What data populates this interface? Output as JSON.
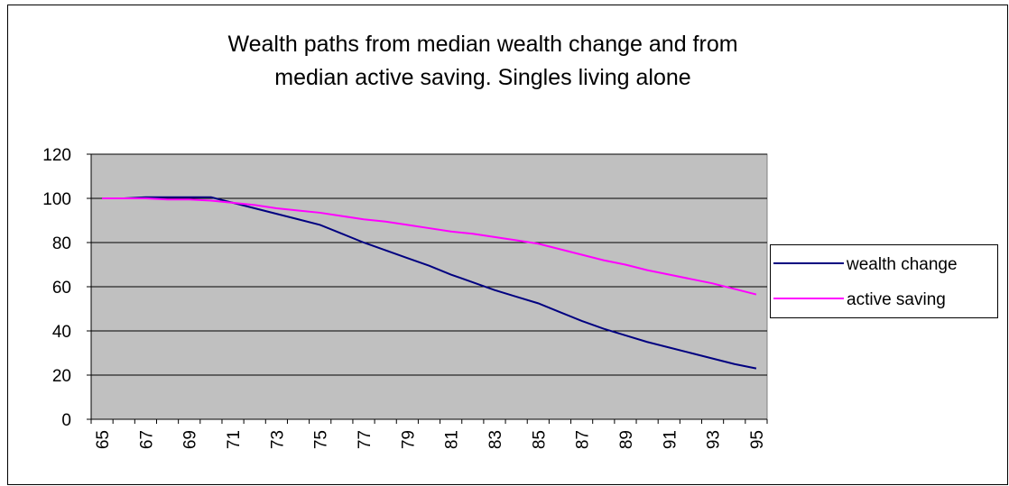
{
  "chart_data": {
    "type": "line",
    "title": [
      "Wealth paths from median wealth change and from",
      "median active saving.  Singles living alone"
    ],
    "categories": [
      "65",
      null,
      "67",
      null,
      "69",
      null,
      "71",
      null,
      "73",
      null,
      "75",
      null,
      "77",
      null,
      "79",
      null,
      "81",
      null,
      "83",
      null,
      "85",
      null,
      "87",
      null,
      "89",
      null,
      "91",
      null,
      "93",
      null,
      "95"
    ],
    "series": [
      {
        "name": "wealth change",
        "color": "#000080",
        "values": [
          100,
          100,
          100.5,
          100.5,
          100.5,
          100.5,
          98,
          95.5,
          93,
          90.5,
          88,
          84,
          80,
          76.5,
          73,
          69.5,
          65.5,
          62,
          58.5,
          55.5,
          52.5,
          48.5,
          44.5,
          41,
          38,
          35,
          32.5,
          30,
          27.5,
          25,
          23
        ]
      },
      {
        "name": "active saving",
        "color": "#ff00ff",
        "values": [
          100,
          100,
          100,
          99.5,
          99.5,
          99,
          98,
          97,
          95.5,
          94.5,
          93.5,
          92,
          90.5,
          89.5,
          88,
          86.5,
          85,
          84,
          82.5,
          81,
          79.5,
          77,
          74.5,
          72,
          70,
          67.5,
          65.5,
          63.5,
          61.5,
          59,
          56.5
        ]
      }
    ],
    "ylim": [
      0,
      120
    ],
    "yticks": [
      0,
      20,
      40,
      60,
      80,
      100,
      120
    ],
    "grid": true,
    "plot_background": "#c0c0c0",
    "legend": "right"
  }
}
